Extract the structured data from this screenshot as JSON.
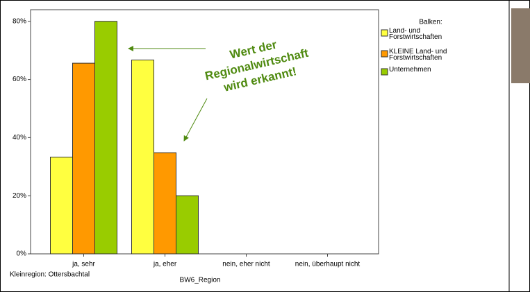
{
  "chart_data": {
    "type": "bar",
    "categories": [
      "ja, sehr",
      "ja, eher",
      "nein, eher nicht",
      "nein, überhaupt nicht"
    ],
    "series": [
      {
        "name": "Land- und Forstwirtschaften",
        "color": "#ffff40",
        "values": [
          33.3,
          66.7,
          null,
          null
        ]
      },
      {
        "name": "KLEINE Land- und Forstwirtschaften",
        "color": "#ff9900",
        "values": [
          65.6,
          34.8,
          null,
          null
        ]
      },
      {
        "name": "Unternehmen",
        "color": "#99cc00",
        "values": [
          80,
          20,
          null,
          null
        ]
      }
    ],
    "ylim": [
      0,
      84
    ],
    "yticks": [
      {
        "value": 0,
        "label": "0%"
      },
      {
        "value": 20,
        "label": "20%"
      },
      {
        "value": 40,
        "label": "40%"
      },
      {
        "value": 60,
        "label": "60%"
      },
      {
        "value": 80,
        "label": "80%"
      }
    ],
    "grid": false,
    "legend_title": "Balken:",
    "legend_position": "right",
    "xlabel": "BW6_Region",
    "footnote": "Kleinregion: Ottersbachtal",
    "annotation": [
      "Wert der",
      "Regionalwirtschaft",
      "wird erkannt!"
    ]
  }
}
